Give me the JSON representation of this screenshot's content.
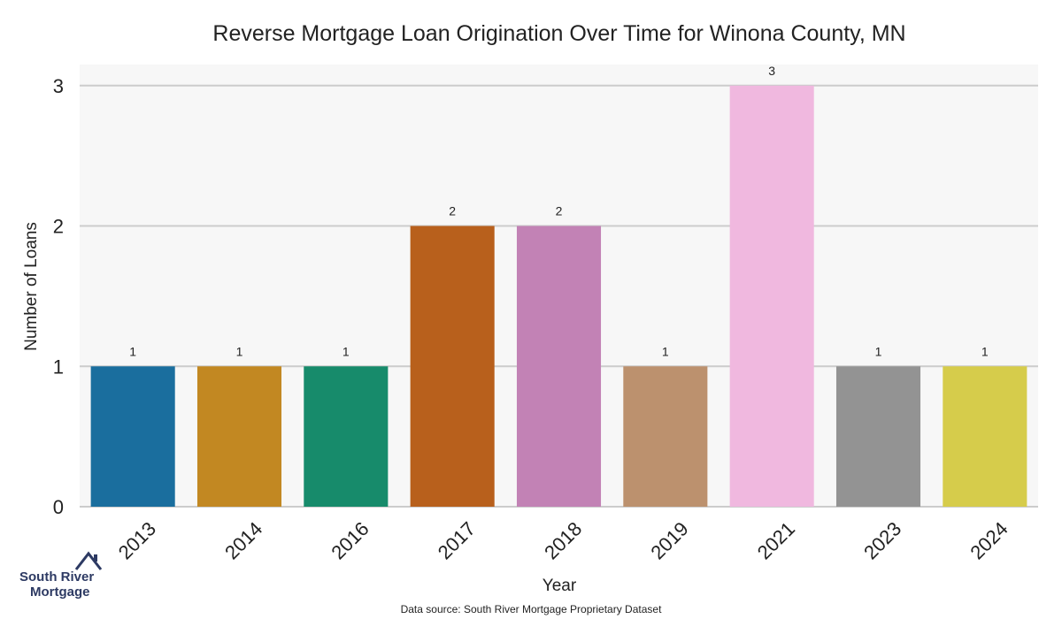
{
  "chart_data": {
    "type": "bar",
    "title": "Reverse Mortgage Loan Origination Over Time for Winona County, MN",
    "xlabel": "Year",
    "ylabel": "Number of Loans",
    "categories": [
      "2013",
      "2014",
      "2016",
      "2017",
      "2018",
      "2019",
      "2021",
      "2023",
      "2024"
    ],
    "values": [
      1,
      1,
      1,
      2,
      2,
      1,
      3,
      1,
      1
    ],
    "data_labels": [
      "1",
      "1",
      "1",
      "2",
      "2",
      "1",
      "3",
      "1",
      "1"
    ],
    "colors": [
      "#1a6e9e",
      "#c28822",
      "#178b6b",
      "#b8601c",
      "#c282b5",
      "#bc916e",
      "#f0b8df",
      "#939393",
      "#d6cc4b"
    ],
    "ylim": [
      0,
      3.15
    ],
    "yticks": [
      "0",
      "1",
      "2",
      "3"
    ],
    "grid": true,
    "plot_background": "#f7f7f7",
    "source_note": "Data source: South River Mortgage Proprietary Dataset"
  },
  "logo": {
    "line1": "South River",
    "line2": "Mortgage",
    "color": "#2d3a63"
  }
}
